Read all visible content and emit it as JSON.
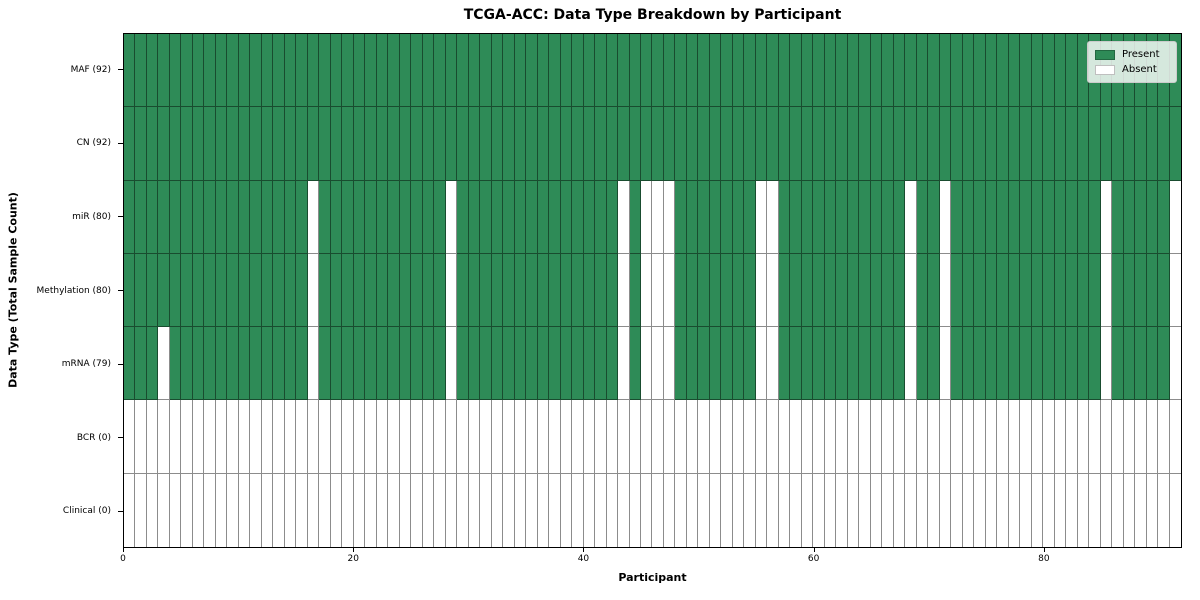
{
  "title": "TCGA-ACC: Data Type Breakdown by Participant",
  "xlabel": "Participant",
  "ylabel": "Data Type (Total Sample Count)",
  "legend": {
    "present_label": "Present",
    "absent_label": "Absent"
  },
  "colors": {
    "present": "#2e8b57",
    "absent": "#ffffff",
    "cell_edge": "rgba(0,0,0,0.45)",
    "frame": "#000000"
  },
  "chart_data": {
    "type": "heatmap",
    "n_participants": 92,
    "x_ticks": [
      0,
      20,
      40,
      60,
      80
    ],
    "x_range": [
      0,
      92
    ],
    "legend_entries": [
      "Present",
      "Absent"
    ],
    "legend_position": "upper right",
    "rows": [
      {
        "label": "MAF (92)",
        "present_count": 92,
        "absent_participants": []
      },
      {
        "label": "CN (92)",
        "present_count": 92,
        "absent_participants": []
      },
      {
        "label": "miR (80)",
        "present_count": 80,
        "absent_participants": [
          16,
          28,
          43,
          45,
          46,
          47,
          55,
          56,
          68,
          71,
          85,
          91
        ]
      },
      {
        "label": "Methylation (80)",
        "present_count": 80,
        "absent_participants": [
          16,
          28,
          43,
          45,
          46,
          47,
          55,
          56,
          68,
          71,
          85,
          91
        ]
      },
      {
        "label": "mRNA (79)",
        "present_count": 79,
        "absent_participants": [
          3,
          16,
          28,
          43,
          45,
          46,
          47,
          55,
          56,
          68,
          71,
          85,
          91
        ]
      },
      {
        "label": "BCR (0)",
        "present_count": 0,
        "absent_participants": "all"
      },
      {
        "label": "Clinical (0)",
        "present_count": 0,
        "absent_participants": "all"
      }
    ]
  }
}
